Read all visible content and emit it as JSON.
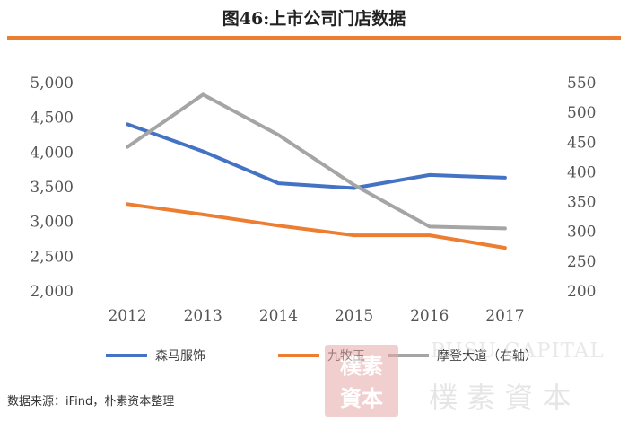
{
  "title": "图46:上市公司门店数据",
  "source": "数据来源：iFind，朴素资本整理",
  "watermark": {
    "seal_text": "樸素資本",
    "english": "PUSU CAPITAL",
    "chinese": "樸 素 資 本"
  },
  "colors": {
    "accent": "#ed7d31",
    "series": [
      "#4472c4",
      "#ed7d31",
      "#a5a5a5"
    ]
  },
  "chart_data": {
    "type": "line",
    "x": [
      "2012",
      "2013",
      "2014",
      "2015",
      "2016",
      "2017"
    ],
    "left_axis": {
      "ylim": [
        2000,
        5000
      ],
      "ticks": [
        "2,000",
        "2,500",
        "3,000",
        "3,500",
        "4,000",
        "4,500",
        "5,000"
      ]
    },
    "right_axis": {
      "ylim": [
        200,
        550
      ],
      "ticks": [
        "200",
        "250",
        "300",
        "350",
        "400",
        "450",
        "500",
        "550"
      ]
    },
    "series": [
      {
        "name": "森马服饰",
        "axis": "left",
        "values": [
          4400,
          4010,
          3550,
          3480,
          3670,
          3630
        ]
      },
      {
        "name": "九牧王",
        "axis": "left",
        "values": [
          3250,
          3100,
          2940,
          2800,
          2800,
          2620
        ]
      },
      {
        "name": "摩登大道（右轴）",
        "axis": "right",
        "values": [
          442,
          530,
          462,
          378,
          308,
          305
        ]
      }
    ],
    "legend_position": "bottom",
    "grid": false
  }
}
